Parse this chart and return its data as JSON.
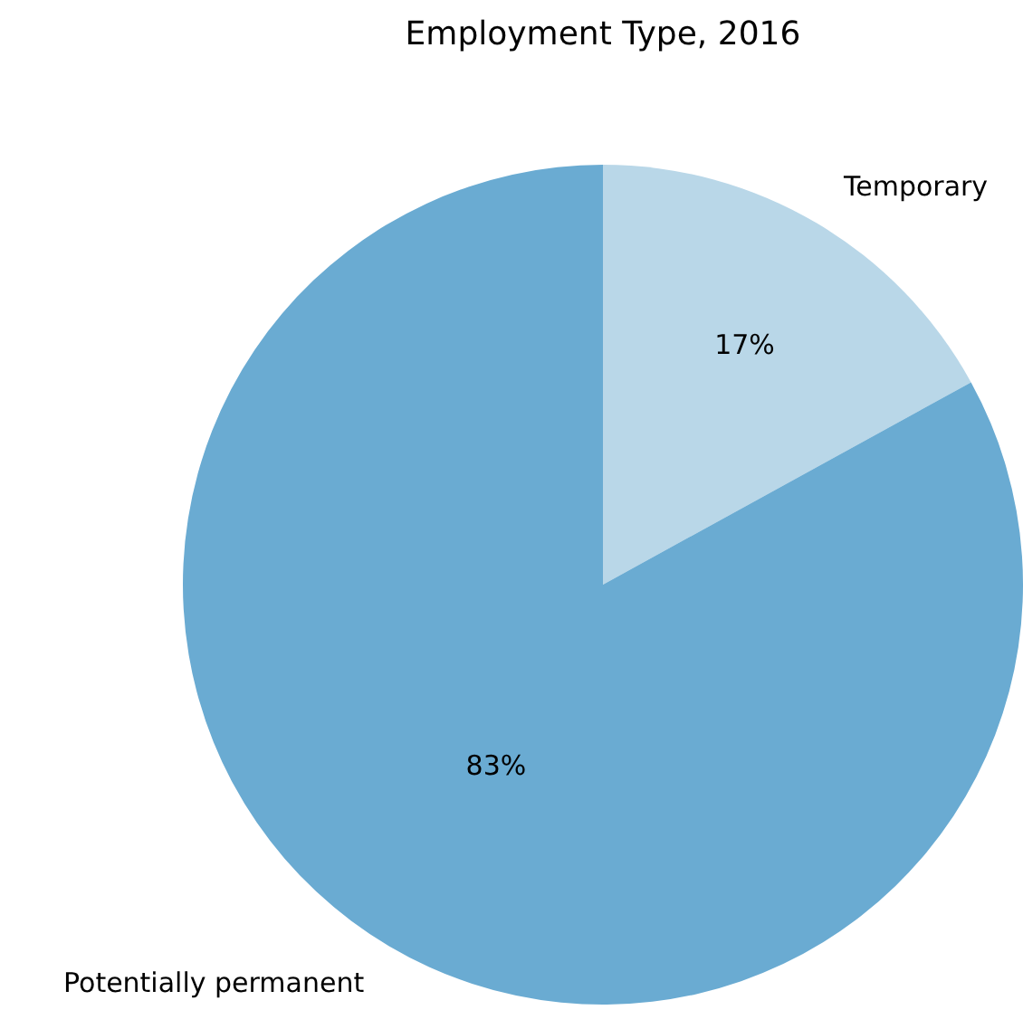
{
  "chart_data": {
    "type": "pie",
    "title": "Employment Type, 2016",
    "categories": [
      "Temporary",
      "Potentially permanent"
    ],
    "values": [
      17,
      83
    ],
    "value_labels": [
      "17%",
      "83%"
    ],
    "colors": [
      "#b9d7e8",
      "#6aabd2"
    ],
    "legend": false
  }
}
